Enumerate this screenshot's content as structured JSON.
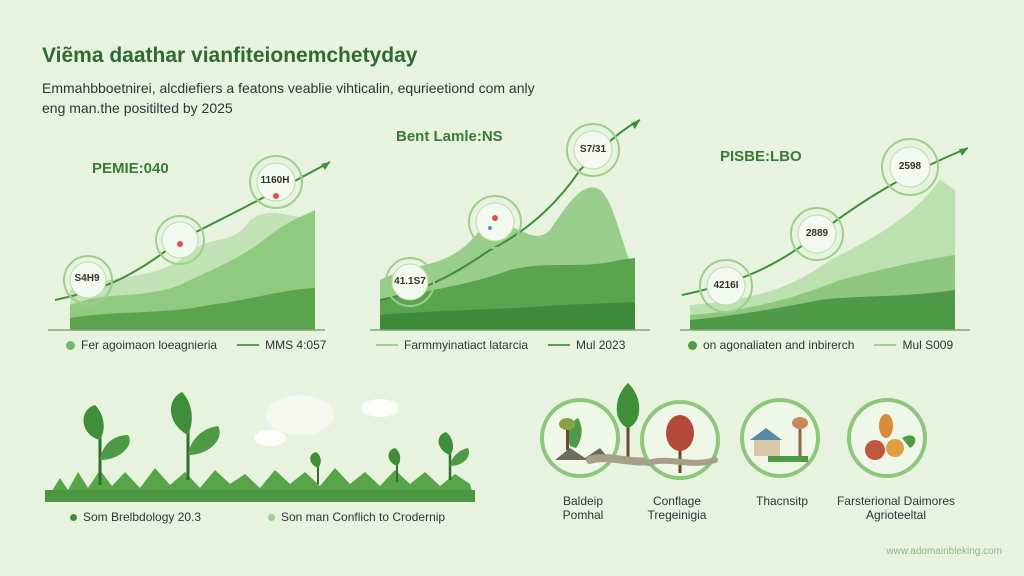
{
  "header": {
    "title": "Viẽma daathar vianfiteionemchetyday",
    "subtitle_line1": "Emmahbboetnirei, alcdiefiers a featons veablie vihticalin, equrieetiond com anly",
    "subtitle_line2": "eng man.the positilted by 2025"
  },
  "panels": [
    {
      "title": "PEMIE:040",
      "callouts": [
        "S4H9",
        "",
        "1160H"
      ],
      "legend_area": "Fer agoimaon loeagnieria",
      "legend_line": "MMS 4:057"
    },
    {
      "title": "Bent Lamle:NS",
      "callouts": [
        "41.1S7",
        "",
        "S7/31"
      ],
      "legend_area": "Farmmyinatiact latarcia",
      "legend_line": "Mul 2023"
    },
    {
      "title": "PISBE:LBO",
      "callouts": [
        "4216I",
        "2889",
        "2598"
      ],
      "legend_area": "on agonaliaten and inbirerch",
      "legend_line": "Mul S009"
    }
  ],
  "bottom_left": {
    "caption1": "Som Brelbdology  20.3",
    "caption2": "Son man Conflich to Crodernip"
  },
  "bottom_right": {
    "captions": [
      {
        "line1": "Baldeip",
        "line2": "Pomhal"
      },
      {
        "line1": "Conflage",
        "line2": "Tregeinigia"
      },
      {
        "line1": "Thacnsitp",
        "line2": ""
      },
      {
        "line1": "Farsterional Daimores",
        "line2": "Agrioteeltal"
      }
    ]
  },
  "footer": {
    "url": "www.adomainbleking.com"
  },
  "colors": {
    "background": "#e7f3df",
    "dark_green": "#2e6b30",
    "mid_green": "#58a04e",
    "light_green": "#9fd08f"
  }
}
